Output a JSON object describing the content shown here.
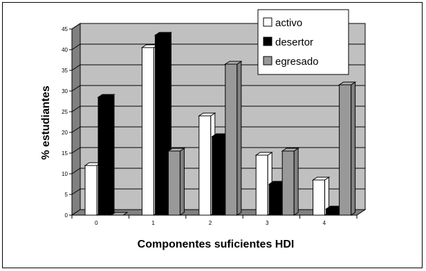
{
  "chart_data": {
    "type": "bar",
    "categories": [
      "0",
      "1",
      "2",
      "3",
      "4"
    ],
    "series": [
      {
        "name": "activo",
        "values": [
          12,
          40.5,
          24,
          14.5,
          8.5
        ],
        "color": "#ffffff"
      },
      {
        "name": "desertor",
        "values": [
          28.5,
          43.5,
          19,
          7.5,
          1.5
        ],
        "color": "#000000"
      },
      {
        "name": "egresado",
        "values": [
          0,
          15.5,
          36.5,
          15.5,
          31.5
        ],
        "color": "#999999"
      }
    ],
    "title": "",
    "xlabel": "Componentes suficientes HDI",
    "ylabel": "% estudiantes",
    "ylim": [
      0,
      45
    ],
    "yticks": [
      "0",
      "5",
      "10",
      "15",
      "20",
      "25",
      "30",
      "35",
      "40",
      "45"
    ],
    "grid": true,
    "plot_background": "#c0c0c0",
    "legend_position": "top-right",
    "projection": "3d-bar"
  }
}
